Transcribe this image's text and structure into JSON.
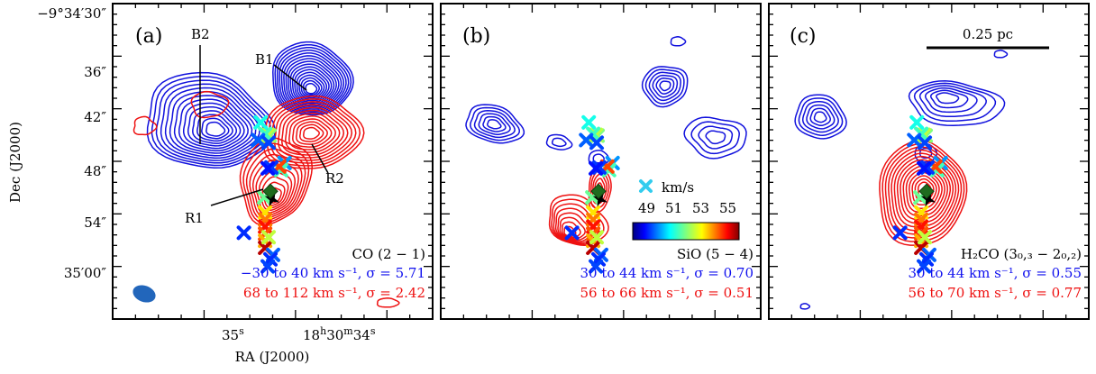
{
  "chart_data": {
    "type": "contour_map",
    "xlabel": "RA (J2000)",
    "ylabel": "Dec (J2000)",
    "x_ticks": [
      {
        "label": "35",
        "sup": "s"
      },
      {
        "label": "18",
        "sup1": "h",
        "mid": "30",
        "sup2": "m",
        "tail": "34",
        "sup3": "s"
      }
    ],
    "y_ticks": [
      "−9°34′30″",
      "36″",
      "42″",
      "48″",
      "54″",
      "35′00″"
    ],
    "panels": [
      {
        "id": "a",
        "label": "(a)",
        "annotations": [
          "B2",
          "B1",
          "R1",
          "R2"
        ],
        "molecule": "CO (2 − 1)",
        "blue_range": "−30 to 40 km s⁻¹, σ = 5.71",
        "red_range": "68 to 112 km s⁻¹, σ = 2.42"
      },
      {
        "id": "b",
        "label": "(b)",
        "molecule": "SiO (5 − 4)",
        "blue_range": "30 to 44 km s⁻¹, σ = 0.70",
        "red_range": "56 to 66 km s⁻¹, σ = 0.51",
        "colorbar": {
          "title": "km/s",
          "ticks": [
            "49",
            "51",
            "53",
            "55"
          ],
          "range": [
            48,
            56
          ],
          "colormap": "jet"
        }
      },
      {
        "id": "c",
        "label": "(c)",
        "molecule": "H₂CO (3₀,₃ − 2₀,₂)",
        "blue_range": "30 to 44 km s⁻¹, σ = 0.55",
        "red_range": "56 to 70 km s⁻¹, σ = 0.77",
        "scalebar": "0.25 pc"
      }
    ],
    "markers": {
      "note": "maser spots colored by velocity (km/s); data units = arcsec offsets from reference (RA east positive, Dec north positive)",
      "points": [
        {
          "dx": 1.6,
          "dy": -0.4,
          "v": 50.0
        },
        {
          "dx": 1.2,
          "dy": -1.2,
          "v": 51.5
        },
        {
          "dx": 1.0,
          "dy": -0.8,
          "v": 54.6
        },
        {
          "dx": 0.1,
          "dy": -0.9,
          "v": 49.3
        },
        {
          "dx": -0.3,
          "dy": -1.0,
          "v": 49.0
        },
        {
          "dx": -0.1,
          "dy": 2.7,
          "v": 52.0
        },
        {
          "dx": -0.3,
          "dy": 2.8,
          "v": 52.6
        },
        {
          "dx": -0.6,
          "dy": 2.9,
          "v": 51.4
        },
        {
          "dx": -1.1,
          "dy": 4.2,
          "v": 51.0
        },
        {
          "dx": -1.4,
          "dy": 2.2,
          "v": 49.6
        },
        {
          "dx": -0.2,
          "dy": 1.9,
          "v": 49.4
        },
        {
          "dx": -0.6,
          "dy": -6.0,
          "v": 53.4
        },
        {
          "dx": -0.6,
          "dy": -6.8,
          "v": 54.2
        },
        {
          "dx": -0.6,
          "dy": -7.6,
          "v": 55.0
        },
        {
          "dx": -0.6,
          "dy": -8.4,
          "v": 54.5
        },
        {
          "dx": -0.6,
          "dy": -9.2,
          "v": 53.8
        },
        {
          "dx": -0.6,
          "dy": -10.0,
          "v": 55.6
        },
        {
          "dx": -0.2,
          "dy": -8.8,
          "v": 52.6
        },
        {
          "dx": 0.3,
          "dy": -10.8,
          "v": 49.6
        },
        {
          "dx": 0.0,
          "dy": -11.3,
          "v": 49.2
        },
        {
          "dx": -0.3,
          "dy": -12.1,
          "v": 49.4
        },
        {
          "dx": -3.0,
          "dy": -8.3,
          "v": 49.2
        },
        {
          "dx": -0.7,
          "dy": -4.3,
          "v": 51.8
        }
      ],
      "star": {
        "dx": 0.2,
        "dy": -4.5
      },
      "diamond": {
        "dx": 0.0,
        "dy": -3.6
      }
    }
  }
}
